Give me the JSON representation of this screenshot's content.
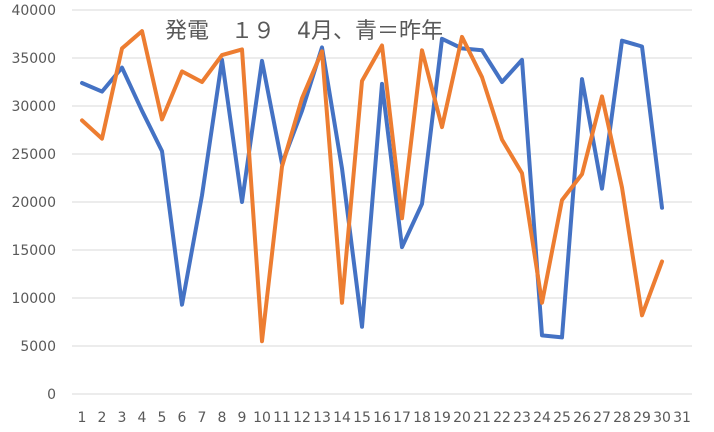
{
  "chart_data": {
    "type": "line",
    "title": "発電　１９　4月、青＝昨年",
    "xlabel": "",
    "ylabel": "",
    "categories": [
      "1",
      "2",
      "3",
      "4",
      "5",
      "6",
      "7",
      "8",
      "9",
      "10",
      "11",
      "12",
      "13",
      "14",
      "15",
      "16",
      "17",
      "18",
      "19",
      "20",
      "21",
      "22",
      "23",
      "24",
      "25",
      "26",
      "27",
      "28",
      "29",
      "30",
      "31"
    ],
    "ylim": [
      0,
      40000
    ],
    "yticks": [
      0,
      5000,
      10000,
      15000,
      20000,
      25000,
      30000,
      35000,
      40000
    ],
    "grid": true,
    "legend": "none",
    "series": [
      {
        "color": "#4472c4",
        "values": [
          32400,
          31500,
          34000,
          29500,
          25300,
          9300,
          20700,
          34800,
          20000,
          34700,
          24000,
          29500,
          36100,
          23500,
          7000,
          32300,
          15300,
          19800,
          37000,
          36000,
          35800,
          32500,
          34800,
          6100,
          5900,
          32800,
          21400,
          36800,
          36200,
          19400,
          null
        ]
      },
      {
        "color": "#ed7d31",
        "values": [
          28500,
          26600,
          36000,
          37800,
          28600,
          33600,
          32500,
          35300,
          35900,
          5500,
          23700,
          30800,
          35700,
          9500,
          32600,
          36300,
          18300,
          35800,
          27800,
          37200,
          33000,
          26500,
          23000,
          9500,
          20200,
          22900,
          31000,
          21500,
          8200,
          13800,
          null
        ]
      }
    ]
  }
}
